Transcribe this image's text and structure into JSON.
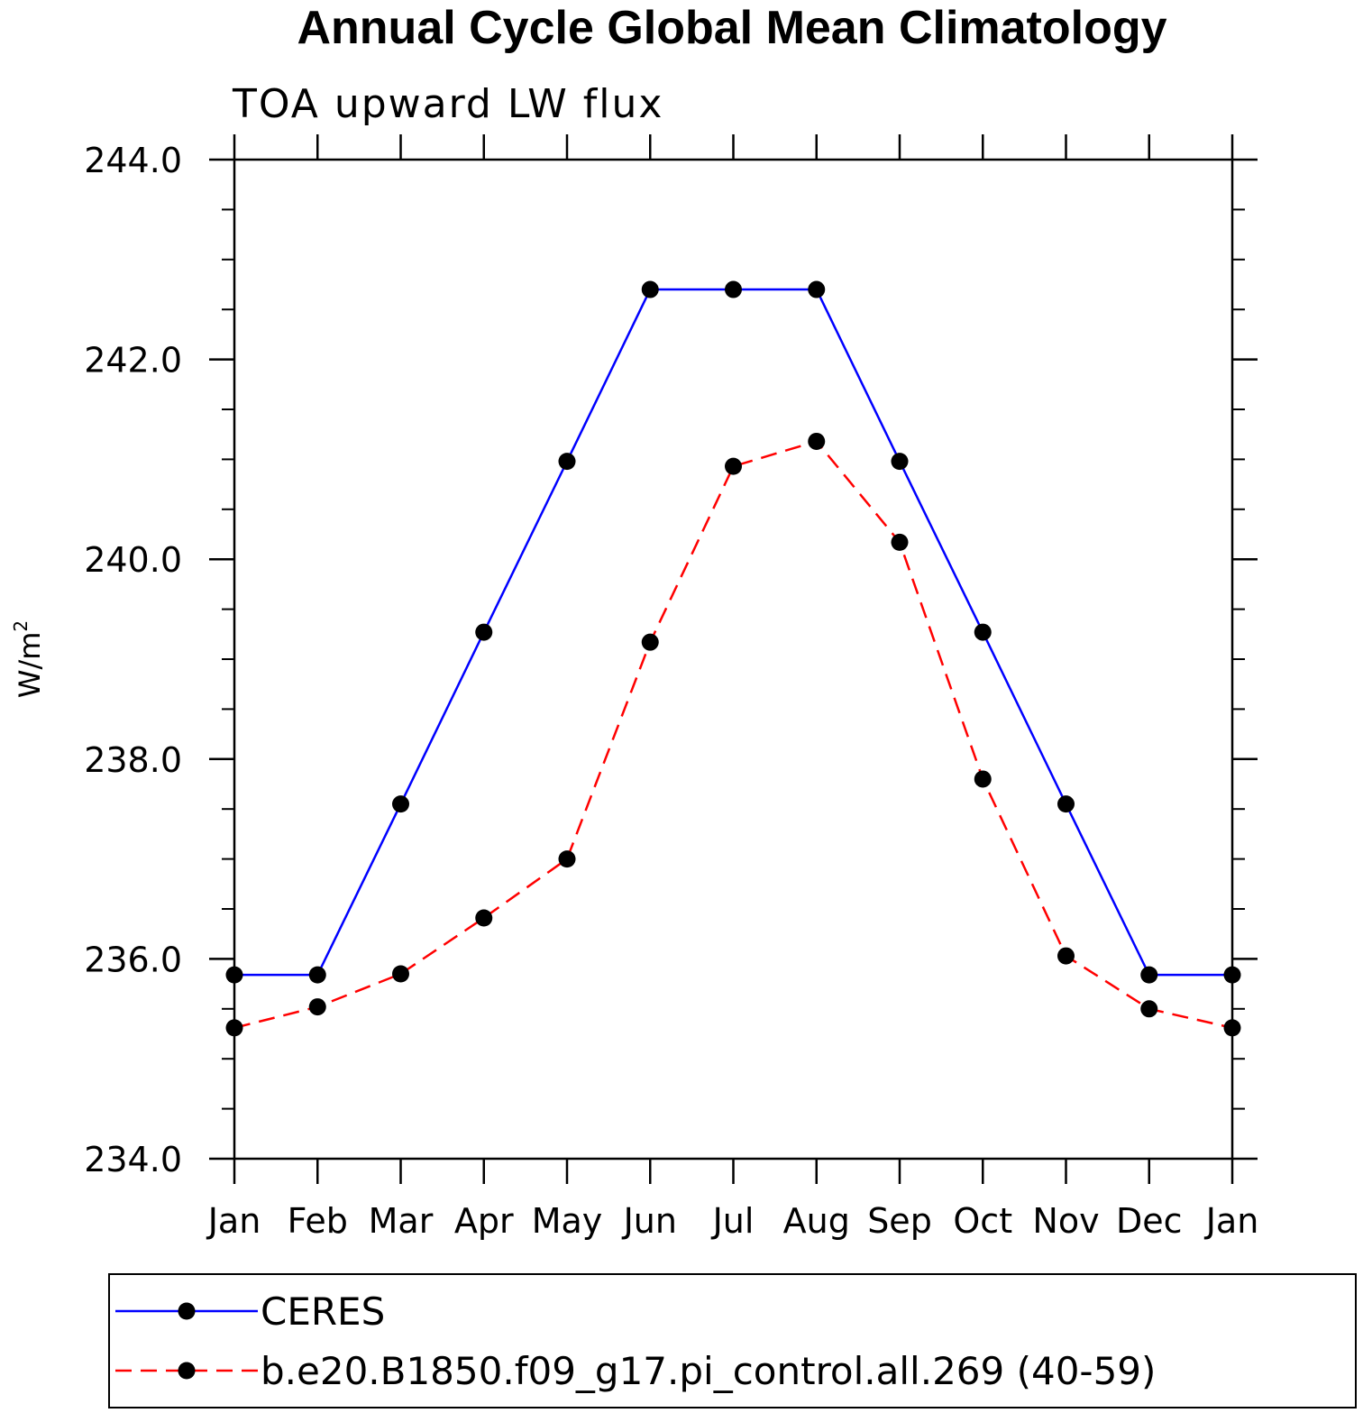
{
  "chart_data": {
    "type": "line",
    "title": "Annual Cycle Global Mean Climatology",
    "subtitle": "TOA upward LW flux",
    "ylabel": "W/m",
    "ylabel_superscript": "2",
    "xlabel": "",
    "categories": [
      "Jan",
      "Feb",
      "Mar",
      "Apr",
      "May",
      "Jun",
      "Jul",
      "Aug",
      "Sep",
      "Oct",
      "Nov",
      "Dec",
      "Jan"
    ],
    "ylim": [
      234.0,
      244.0
    ],
    "yticks": [
      234.0,
      236.0,
      238.0,
      240.0,
      242.0,
      244.0
    ],
    "ytick_labels": [
      "234.0",
      "236.0",
      "238.0",
      "240.0",
      "242.0",
      "244.0"
    ],
    "legend_position": "bottom",
    "grid": false,
    "series": [
      {
        "name": "CERES",
        "color": "#0000ff",
        "line_style": "solid",
        "marker": "filled-circle",
        "values": [
          235.84,
          235.84,
          237.55,
          239.27,
          240.98,
          242.7,
          242.7,
          242.7,
          240.98,
          239.27,
          237.55,
          235.84,
          235.84
        ]
      },
      {
        "name": "b.e20.B1850.f09_g17.pi_control.all.269 (40-59)",
        "color": "#ff0000",
        "line_style": "dashed",
        "marker": "filled-circle",
        "values": [
          235.31,
          235.52,
          235.85,
          236.41,
          237.0,
          239.17,
          240.93,
          241.18,
          240.17,
          237.8,
          236.03,
          235.5,
          235.31
        ]
      }
    ]
  }
}
